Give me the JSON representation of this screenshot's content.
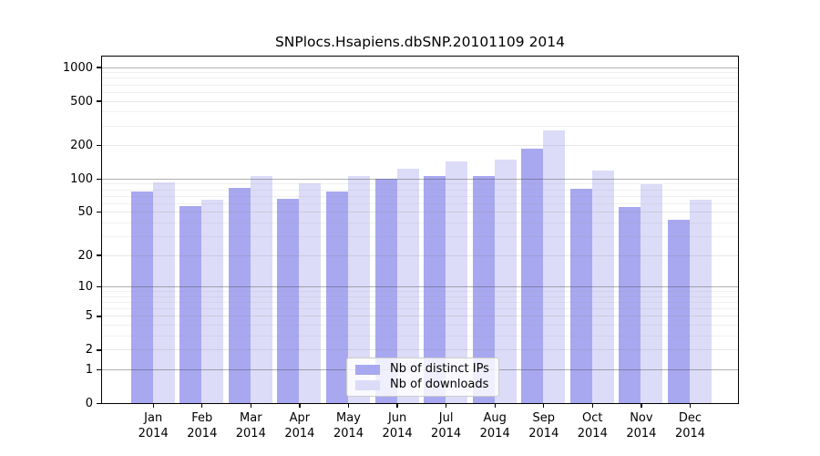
{
  "title": "SNPlocs.Hsapiens.dbSNP.20101109 2014",
  "chart_data": {
    "type": "bar",
    "title": "SNPlocs.Hsapiens.dbSNP.20101109 2014",
    "categories": [
      "Jan",
      "Feb",
      "Mar",
      "Apr",
      "May",
      "Jun",
      "Jul",
      "Aug",
      "Sep",
      "Oct",
      "Nov",
      "Dec"
    ],
    "year": "2014",
    "series": [
      {
        "name": "Nb of distinct IPs",
        "color": "#a8a8f0",
        "values": [
          76,
          57,
          83,
          66,
          77,
          99,
          106,
          106,
          185,
          81,
          55,
          42
        ]
      },
      {
        "name": "Nb of downloads",
        "color": "#dcdcf8",
        "values": [
          93,
          65,
          106,
          90,
          106,
          123,
          143,
          148,
          270,
          118,
          89,
          65
        ]
      }
    ],
    "y_axis": {
      "scale": "log1p",
      "labeled_ticks": [
        0,
        1,
        2,
        5,
        10,
        20,
        50,
        100,
        200,
        500,
        1000
      ],
      "major_gridlines": [
        1,
        10,
        100,
        1000
      ],
      "mid_gridlines": [
        2,
        5,
        20,
        50,
        200,
        500
      ],
      "minor_gridlines": [
        3,
        4,
        6,
        7,
        8,
        9,
        30,
        40,
        60,
        70,
        80,
        90,
        300,
        400,
        600,
        700,
        800,
        900
      ],
      "ylim": [
        0,
        1200
      ]
    },
    "xlabel": "",
    "ylabel": "",
    "grid": true,
    "legend_position": "bottom-center"
  }
}
